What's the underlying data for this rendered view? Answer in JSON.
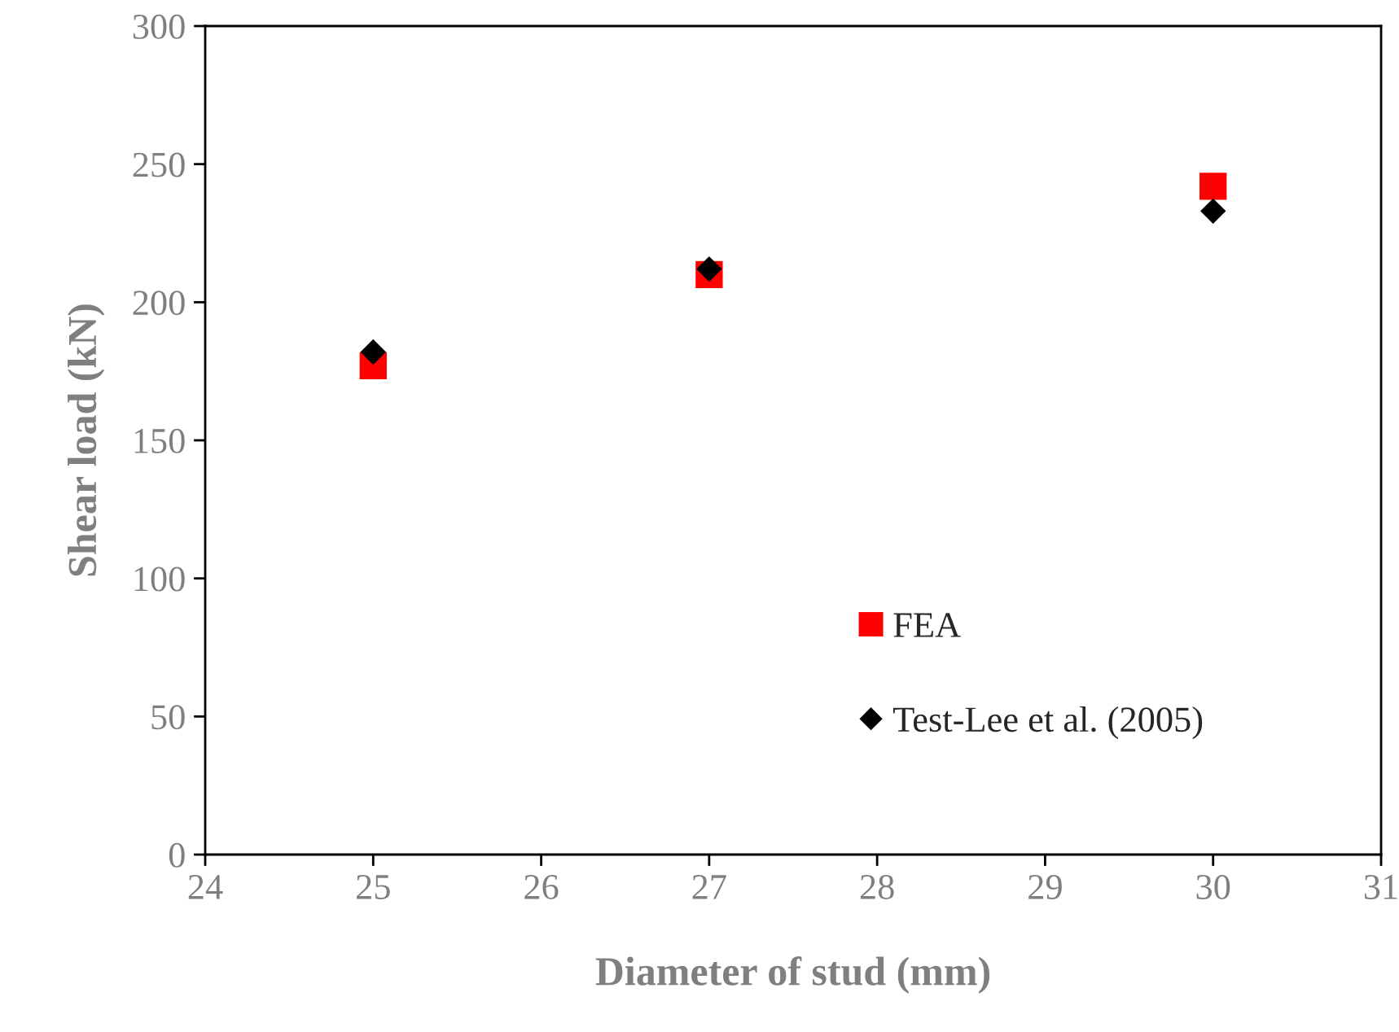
{
  "chart_data": {
    "type": "scatter",
    "xlabel": "Diameter of stud (mm)",
    "ylabel": "Shear load (kN)",
    "x": [
      25,
      27,
      30
    ],
    "series": [
      {
        "name": "FEA",
        "color": "#ff0000",
        "marker": "square",
        "values": [
          177,
          210,
          242
        ]
      },
      {
        "name": "Test-Lee et al. (2005)",
        "color": "#000000",
        "marker": "diamond",
        "values": [
          182,
          212,
          233
        ]
      }
    ],
    "xlim": [
      24,
      31
    ],
    "xticks": [
      24,
      25,
      26,
      27,
      28,
      29,
      30,
      31
    ],
    "ylim": [
      0,
      300
    ],
    "yticks": [
      0,
      50,
      100,
      150,
      200,
      250,
      300
    ],
    "grid": false,
    "legend": "bottom right"
  }
}
